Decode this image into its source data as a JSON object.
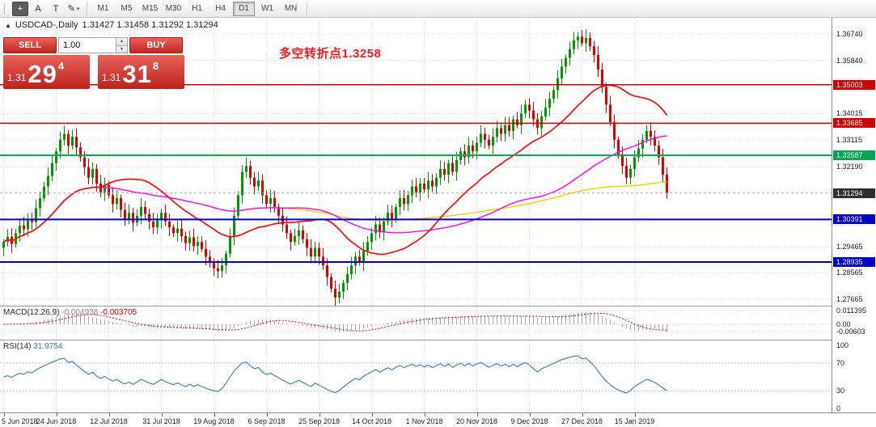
{
  "toolbar": {
    "tools": [
      {
        "name": "crosshair",
        "glyph": "+",
        "dark": true
      },
      {
        "name": "cursor",
        "glyph": "A",
        "dark": false
      },
      {
        "name": "text-label",
        "glyph": "T",
        "dark": false
      },
      {
        "name": "draw",
        "glyph": "✎",
        "dark": false,
        "caret": "▾"
      }
    ],
    "timeframes": [
      "M1",
      "M5",
      "M15",
      "M30",
      "H1",
      "H4",
      "D1",
      "W1",
      "MN"
    ],
    "active_timeframe": "D1"
  },
  "header": {
    "collapse_glyph": "▲",
    "symbol": "USDCAD-,Daily",
    "ohlc": "1.31427 1.31458 1.31292 1.31294"
  },
  "trade_panel": {
    "sell_label": "SELL",
    "buy_label": "BUY",
    "volume": "1.00",
    "sell_price": {
      "prefix": "1.31",
      "big": "29",
      "sup": "4"
    },
    "buy_price": {
      "prefix": "1.31",
      "big": "31",
      "sup": "8"
    },
    "panel_color": "#d5332c"
  },
  "annotation": {
    "text": "多空转折点1.3258",
    "color": "#ff1a1a"
  },
  "price_scale": {
    "grid_labels": [
      {
        "price": 1.3674,
        "text": "1.36740"
      },
      {
        "price": 1.3584,
        "text": "1.35840"
      },
      {
        "price": 1.34015,
        "text": "1.34015"
      },
      {
        "price": 1.33115,
        "text": "1.33115"
      },
      {
        "price": 1.3219,
        "text": "1.32190"
      },
      {
        "price": 1.29465,
        "text": "1.29465"
      },
      {
        "price": 1.28565,
        "text": "1.28565"
      },
      {
        "price": 1.27665,
        "text": "1.27665"
      }
    ],
    "badges": [
      {
        "price": 1.35003,
        "text": "1.35003",
        "color": "#cc0000"
      },
      {
        "price": 1.33685,
        "text": "1.33685",
        "color": "#cc0000"
      },
      {
        "price": 1.32587,
        "text": "1.32587",
        "color": "#00a651"
      },
      {
        "price": 1.31294,
        "text": "1.31294",
        "color": "#2f2f2f"
      },
      {
        "price": 1.30391,
        "text": "1.30391",
        "color": "#0000c8"
      },
      {
        "price": 1.28935,
        "text": "1.28935",
        "color": "#0000c8"
      }
    ]
  },
  "hlines": [
    {
      "price": 1.35003,
      "color": "#cc0000",
      "width": 1.4
    },
    {
      "price": 1.33685,
      "color": "#cc0000",
      "width": 1.4
    },
    {
      "price": 1.32587,
      "color": "#00b050",
      "width": 2
    },
    {
      "price": 1.30391,
      "color": "#0000c8",
      "width": 2
    },
    {
      "price": 1.28935,
      "color": "#0000c8",
      "width": 2
    }
  ],
  "chart_data": {
    "type": "candlestick",
    "symbol": "USDCAD",
    "timeframe": "Daily",
    "current_price": 1.31294,
    "up_color": "#009900",
    "down_color": "#dd0000",
    "ma_colors": {
      "fast": "#ff0000",
      "mid": "#ff00ff",
      "slow": "#e6d600"
    },
    "closes": [
      1.2962,
      1.298,
      1.2955,
      1.2992,
      1.3018,
      1.3005,
      1.3042,
      1.303,
      1.3078,
      1.3112,
      1.3152,
      1.3188,
      1.3232,
      1.3272,
      1.3312,
      1.3332,
      1.3292,
      1.3322,
      1.3286,
      1.3252,
      1.3218,
      1.3182,
      1.3212,
      1.3162,
      1.3132,
      1.3158,
      1.3122,
      1.3092,
      1.3112,
      1.3072,
      1.3042,
      1.3062,
      1.3028,
      1.3052,
      1.3082,
      1.3058,
      1.3032,
      1.3012,
      1.3036,
      1.3062,
      1.3032,
      1.3012,
      1.2992,
      1.3008,
      1.2982,
      1.2958,
      1.2978,
      1.2948,
      1.2962,
      1.2938,
      1.2912,
      1.2892,
      1.2872,
      1.2862,
      1.2882,
      1.2922,
      1.2982,
      1.3052,
      1.3122,
      1.3202,
      1.3222,
      1.3182,
      1.3152,
      1.3172,
      1.3122,
      1.3092,
      1.3112,
      1.3082,
      1.3052,
      1.3022,
      1.2992,
      1.2962,
      1.2982,
      1.3002,
      1.2972,
      1.2942,
      1.2912,
      1.2942,
      1.2912,
      1.2882,
      1.2842,
      1.2802,
      1.2772,
      1.2792,
      1.2822,
      1.2852,
      1.2882,
      1.2912,
      1.2892,
      1.2932,
      1.2962,
      1.2992,
      1.3022,
      1.2996,
      1.3032,
      1.3062,
      1.3042,
      1.3082,
      1.3112,
      1.3092,
      1.3122,
      1.3152,
      1.3132,
      1.3162,
      1.3142,
      1.3172,
      1.3152,
      1.3182,
      1.3212,
      1.3192,
      1.3232,
      1.3202,
      1.3242,
      1.3272,
      1.3252,
      1.3292,
      1.3272,
      1.3302,
      1.3332,
      1.3312,
      1.3292,
      1.3322,
      1.3352,
      1.3332,
      1.3362,
      1.3342,
      1.3382,
      1.3362,
      1.3402,
      1.3432,
      1.3412,
      1.3382,
      1.3352,
      1.3392,
      1.3422,
      1.3452,
      1.3482,
      1.3522,
      1.3562,
      1.3592,
      1.3622,
      1.3652,
      1.3665,
      1.3642,
      1.366,
      1.3632,
      1.3602,
      1.3552,
      1.3492,
      1.3432,
      1.3372,
      1.3312,
      1.3262,
      1.3222,
      1.3182,
      1.3212,
      1.3252,
      1.3282,
      1.3312,
      1.3342,
      1.3322,
      1.3292,
      1.3252,
      1.3192,
      1.3129
    ]
  },
  "macd": {
    "label": "MACD(12,26,9)",
    "value_main": "-0.004938",
    "value_signal": "-0.003705",
    "scale": [
      "0.011395",
      "0.00",
      "-0.00603"
    ],
    "histogram_color": "#a8a8a8",
    "signal_color": "#cc0000"
  },
  "rsi": {
    "label": "RSI(14)",
    "value": "31.9754",
    "levels": [
      "100",
      "70",
      "30",
      "0"
    ],
    "line_color": "#3c78b4"
  },
  "date_axis": [
    "5 Jun 2018",
    "24 Jun 2018",
    "12 Jul 2018",
    "31 Jul 2018",
    "19 Aug 2018",
    "6 Sep 2018",
    "25 Sep 2018",
    "14 Oct 2018",
    "1 Nov 2018",
    "20 Nov 2018",
    "9 Dec 2018",
    "27 Dec 2018",
    "15 Jan 2019"
  ]
}
